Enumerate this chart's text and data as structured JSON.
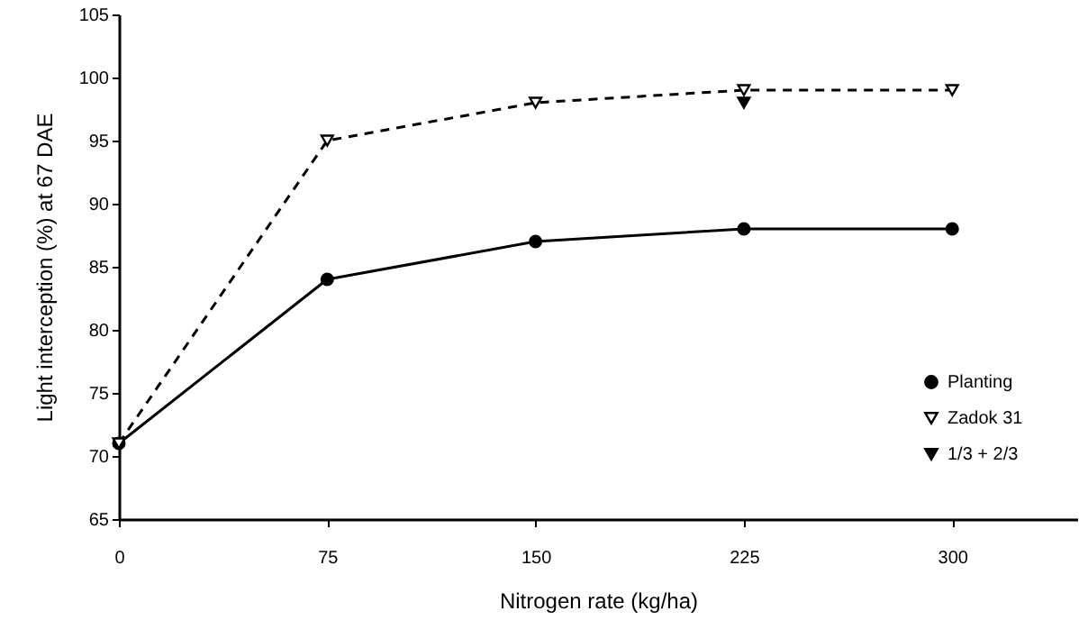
{
  "chart_data": {
    "type": "line",
    "xlabel": "Nitrogen rate (kg/ha)",
    "ylabel": "Light interception (%) at 67 DAE",
    "x": [
      0,
      75,
      150,
      225,
      300
    ],
    "series": [
      {
        "name": "Planting",
        "color": "#000000",
        "values": [
          71,
          84,
          87,
          88,
          88
        ],
        "marker": "circle",
        "line_style": "solid"
      },
      {
        "name": "Zadok 31",
        "color": "#ffffff",
        "values": [
          71,
          95,
          98,
          99,
          99
        ],
        "marker": "triangle",
        "line_style": "dashed"
      },
      {
        "name": "1/3 + 2/3",
        "color": "#000000",
        "type": "scatter",
        "x": [
          225
        ],
        "values": [
          98
        ],
        "marker": "triangle"
      }
    ],
    "xlim": [
      0,
      345
    ],
    "xticks": [
      0,
      75,
      150,
      225,
      300
    ],
    "ylim": [
      65,
      105
    ],
    "yticks": [
      65,
      70,
      75,
      80,
      85,
      90,
      95,
      100,
      105
    ],
    "grid": false,
    "legend": "bottom right"
  }
}
